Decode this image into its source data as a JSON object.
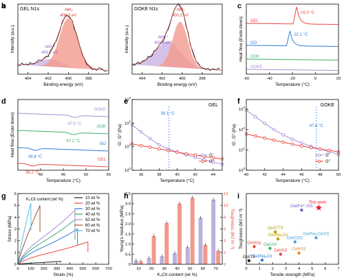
{
  "chart_data": [
    {
      "panel": "a",
      "type": "line",
      "title": "GEL N1s",
      "xlabel": "Binding energy (eV)",
      "ylabel": "Intensity (a.u.)",
      "xlim": [
        405,
        396
      ],
      "xticks": [
        404,
        402,
        400,
        398
      ],
      "ylim": [
        0,
        1.1
      ],
      "series": [
        {
          "name": "-NH2",
          "center": 400.0,
          "fwhm": 2.1,
          "height": 0.78,
          "color": "#f29a8c"
        },
        {
          "name": "-NH3+",
          "center": 401.7,
          "fwhm": 2.6,
          "height": 0.12,
          "color": "#c9b3e3"
        }
      ],
      "annotations": [
        "-NH₂",
        "400.0 eV",
        "-NH₃⁺",
        "401.7 eV"
      ]
    },
    {
      "panel": "b",
      "type": "line",
      "title": "GOKE N1s",
      "xlabel": "Binding energy (eV)",
      "ylabel": "Intensity (a.u.)",
      "xlim": [
        405,
        396
      ],
      "xticks": [
        404,
        402,
        400,
        398
      ],
      "ylim": [
        0,
        1.1
      ],
      "series": [
        {
          "name": "-NH2",
          "center": 400.2,
          "fwhm": 1.8,
          "height": 0.72,
          "color": "#f29a8c"
        },
        {
          "name": "-NH3+",
          "center": 401.4,
          "fwhm": 3.0,
          "height": 0.4,
          "color": "#c9b3e3"
        }
      ],
      "annotations": [
        "-NH₂",
        "400.2 eV",
        "-NH₃⁺",
        "401.4 eV"
      ]
    },
    {
      "panel": "c",
      "type": "line",
      "xlabel": "Temperature (°C)",
      "ylabel": "Heat flow (Endo down)",
      "xlim": [
        -60,
        20
      ],
      "xticks": [
        -60,
        -40,
        -20,
        0,
        20
      ],
      "series": [
        {
          "name": "GEL",
          "peak_temp": -16.3,
          "color": "#e8463c"
        },
        {
          "name": "GO",
          "peak_temp": -22.1,
          "color": "#2b7bd8"
        },
        {
          "name": "GOK",
          "peak_temp": null,
          "color": "#3fae6a"
        },
        {
          "name": "GOKE",
          "peak_temp": null,
          "color": "#a98ad6"
        }
      ],
      "annotations": [
        "-16.3 °C",
        "-22.1 °C"
      ]
    },
    {
      "panel": "d",
      "type": "line",
      "xlabel": "Temperature (°C)",
      "ylabel": "Heat flow (Endo down)",
      "xlim": [
        35,
        55
      ],
      "xticks": [
        40,
        45,
        50,
        55
      ],
      "series": [
        {
          "name": "GOKE",
          "transition": 47.5,
          "color": "#a98ad6"
        },
        {
          "name": "GOK",
          "transition": 47.2,
          "color": "#3fae6a"
        },
        {
          "name": "GO",
          "transition": 38.8,
          "color": "#2b7bd8"
        },
        {
          "name": "GEL",
          "transition": 38.2,
          "color": "#e8463c"
        }
      ],
      "annotations": [
        "47.5 °C",
        "47.2 °C",
        "38.8 °C",
        "38.2 °C"
      ]
    },
    {
      "panel": "e",
      "type": "line",
      "title": "GEL",
      "xlabel": "Temperature (°C)",
      "ylabel": "G′, G″ (Pa)",
      "xlim": [
        35,
        45
      ],
      "xticks": [
        36,
        38,
        40,
        42,
        44
      ],
      "ylim": [
        1,
        1000
      ],
      "log_y": true,
      "series": [
        {
          "name": "G′",
          "x": [
            35,
            36,
            37,
            38,
            39,
            40,
            41,
            42,
            43,
            44,
            45
          ],
          "y": [
            85,
            42,
            22,
            12,
            8,
            6,
            4.5,
            3.5,
            2.8,
            2.2,
            1.8
          ],
          "color": "#a98ad6"
        },
        {
          "name": "G″",
          "x": [
            35,
            36,
            37,
            38,
            39,
            40,
            41,
            42,
            43,
            44,
            45
          ],
          "y": [
            13,
            11,
            9.5,
            8,
            6.8,
            5.8,
            5,
            4.4,
            3.8,
            3.4,
            3
          ],
          "color": "#e8463c"
        }
      ],
      "crossover": 39.1,
      "annotations": [
        "39.1 °C"
      ]
    },
    {
      "panel": "f",
      "type": "line",
      "title": "GOKE",
      "xlabel": "Temperature (°C)",
      "ylabel": "G′, G″ (Pa)",
      "xlim": [
        40,
        50
      ],
      "xticks": [
        40,
        42,
        44,
        46,
        48,
        50
      ],
      "ylim": [
        1,
        3000
      ],
      "log_y": true,
      "series": [
        {
          "name": "G′",
          "x": [
            40,
            41,
            42,
            43,
            44,
            45,
            46,
            47,
            48,
            49,
            50
          ],
          "y": [
            900,
            420,
            200,
            100,
            55,
            33,
            22,
            15,
            11,
            8,
            6
          ],
          "color": "#a98ad6"
        },
        {
          "name": "G″",
          "x": [
            40,
            41,
            42,
            43,
            44,
            45,
            46,
            47,
            48,
            49,
            50
          ],
          "y": [
            60,
            48,
            38,
            30,
            24,
            19,
            15.5,
            13,
            11,
            9.5,
            8
          ],
          "color": "#e8463c"
        }
      ],
      "crossover": 47.6,
      "annotations": [
        "47.6 °C"
      ]
    },
    {
      "panel": "g",
      "type": "line",
      "xlabel": "Strain (%)",
      "ylabel": "Stress (MPa)",
      "xlim": [
        0,
        700
      ],
      "xticks": [
        0,
        100,
        200,
        300,
        400,
        500,
        600,
        700
      ],
      "ylim": [
        0,
        6
      ],
      "legend_title": "K₃Cit content (wt %)",
      "series": [
        {
          "name": "10 wt %",
          "break_strain": 330,
          "break_stress": 0.25,
          "color": "#222222"
        },
        {
          "name": "20 wt %",
          "break_strain": 540,
          "break_stress": 1.9,
          "color": "#e8463c"
        },
        {
          "name": "30 wt %",
          "break_strain": 460,
          "break_stress": 3.0,
          "color": "#2b7bd8"
        },
        {
          "name": "40 wt %",
          "break_strain": 440,
          "break_stress": 3.8,
          "color": "#3fae6a"
        },
        {
          "name": "50 wt %",
          "break_strain": 440,
          "break_stress": 4.6,
          "color": "#a98ad6"
        },
        {
          "name": "60 wt %",
          "break_strain": 170,
          "break_stress": 5.0,
          "color": "#a0522d"
        },
        {
          "name": "70 wt %",
          "break_strain": 100,
          "break_stress": 5.2,
          "color": "#5bc0de"
        }
      ]
    },
    {
      "panel": "h",
      "type": "bar",
      "xlabel": "K₃Cit content (wt %)",
      "ylabel": "Young's modulus (MPa)",
      "ylabel_right": "Toughness (MJ m⁻³)",
      "categories": [
        "10",
        "20",
        "30",
        "40",
        "50",
        "60",
        "70"
      ],
      "ylim": [
        0,
        3.5
      ],
      "ylim_right": [
        0,
        12
      ],
      "series": [
        {
          "name": "Young's modulus",
          "values": [
            0.18,
            0.3,
            0.4,
            0.55,
            0.85,
            2.3,
            3.2
          ],
          "color": "#b9b3dc"
        },
        {
          "name": "Toughness",
          "values": [
            0.5,
            4.8,
            7.0,
            10.3,
            11.3,
            3.3,
            2.3
          ],
          "color": "#f2998b"
        }
      ]
    },
    {
      "panel": "i",
      "type": "scatter",
      "xlabel": "Tensile strength (MPa)",
      "ylabel": "Toughness (MJ m⁻³)",
      "xlim": [
        0,
        7
      ],
      "xticks": [
        0,
        1,
        2,
        3,
        4,
        5,
        6,
        7
      ],
      "ylim": [
        0,
        12
      ],
      "points": [
        {
          "label": "Gel/Fe³⁺/AS",
          "x": 4.2,
          "y": 9.2,
          "color": "#7a5bc7"
        },
        {
          "label": "This work",
          "x": 5.5,
          "y": 9.6,
          "color": "#e8202a",
          "marker": "star"
        },
        {
          "label": "Gel/Na₃Cit/AS",
          "x": 5.3,
          "y": 4.5,
          "color": "#4aa3d8"
        },
        {
          "label": "Gel/CTS",
          "x": 2.2,
          "y": 5.5,
          "color": "#b8a000"
        },
        {
          "label": "Gel/Na₂Cit",
          "x": 2.4,
          "y": 4.3,
          "color": "#b8a000"
        },
        {
          "label": "Gel/OSC",
          "x": 3.7,
          "y": 3.8,
          "color": "#4aa3d8"
        },
        {
          "label": "Gel/Gly",
          "x": 0.6,
          "y": 3.0,
          "color": "#e8463c"
        },
        {
          "label": "Gel/AS",
          "x": 1.8,
          "y": 2.7,
          "color": "#3fae6a"
        },
        {
          "label": "Gel/AS",
          "x": 2.6,
          "y": 1.7,
          "color": "#e8463c"
        },
        {
          "label": "Cell/AS",
          "x": 4.0,
          "y": 1.9,
          "color": "#e08a2a"
        },
        {
          "label": "Gel/TA",
          "x": 0.2,
          "y": 0.6,
          "color": "#222222"
        },
        {
          "label": "Gel/Na₃Cit",
          "x": 1.2,
          "y": 0.7,
          "color": "#2b7bd8"
        }
      ]
    }
  ],
  "panel_labels": [
    "a",
    "b",
    "c",
    "d",
    "e",
    "f",
    "g",
    "h",
    "i"
  ]
}
